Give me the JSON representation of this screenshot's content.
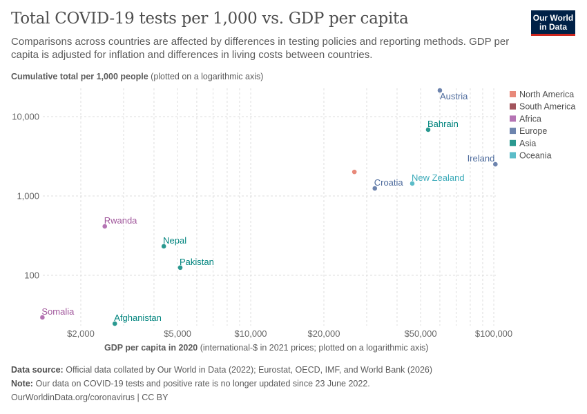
{
  "header": {
    "title": "Total COVID-19 tests per 1,000 vs. GDP per capita",
    "subtitle": "Comparisons across countries are affected by differences in testing policies and reporting methods. GDP per capita is adjusted for inflation and differences in living costs between countries.",
    "logo_text": "Our World in Data"
  },
  "chart_data": {
    "type": "scatter",
    "ylabel_bold": "Cumulative total per 1,000 people",
    "ylabel_note": "(plotted on a logarithmic axis)",
    "xlabel_bold": "GDP per capita in 2020",
    "xlabel_note": "(international-$ in 2021 prices; plotted on a logarithmic axis)",
    "xscale": "log",
    "yscale": "log",
    "xlim": [
      1400,
      102000
    ],
    "ylim": [
      24,
      21500
    ],
    "grid": true,
    "x_ticks": [
      {
        "value": 2000,
        "label": "$2,000"
      },
      {
        "value": 5000,
        "label": "$5,000"
      },
      {
        "value": 10000,
        "label": "$10,000"
      },
      {
        "value": 20000,
        "label": "$20,000"
      },
      {
        "value": 50000,
        "label": "$50,000"
      },
      {
        "value": 100000,
        "label": "$100,000"
      }
    ],
    "x_minor": [
      3000,
      4000,
      6000,
      7000,
      8000,
      9000,
      30000,
      40000,
      60000,
      70000,
      80000,
      90000
    ],
    "y_ticks": [
      {
        "value": 100,
        "label": "100"
      },
      {
        "value": 1000,
        "label": "1,000"
      },
      {
        "value": 10000,
        "label": "10,000"
      }
    ],
    "legend_position": "right",
    "legend": [
      {
        "name": "North America",
        "color": "#e8897a"
      },
      {
        "name": "South America",
        "color": "#a2545c"
      },
      {
        "name": "Africa",
        "color": "#b574b4"
      },
      {
        "name": "Europe",
        "color": "#6d84ae"
      },
      {
        "name": "Asia",
        "color": "#2a9990"
      },
      {
        "name": "Oceania",
        "color": "#5bbcc8"
      }
    ],
    "label_colors": {
      "North America": "#d9604b",
      "South America": "#8c2a35",
      "Africa": "#a0569b",
      "Europe": "#4c6a9c",
      "Asia": "#00847e",
      "Oceania": "#3aaab9"
    },
    "points": [
      {
        "label": "Somalia",
        "region": "Africa",
        "x": 1390,
        "y": 29.5,
        "label_pos": "top-right"
      },
      {
        "label": "Rwanda",
        "region": "Africa",
        "x": 2510,
        "y": 414,
        "label_pos": "top-right"
      },
      {
        "label": "Afghanistan",
        "region": "Asia",
        "x": 2760,
        "y": 24.6,
        "label_pos": "top-right"
      },
      {
        "label": "Nepal",
        "region": "Asia",
        "x": 4390,
        "y": 232,
        "label_pos": "top-right"
      },
      {
        "label": "Pakistan",
        "region": "Asia",
        "x": 5130,
        "y": 125,
        "label_pos": "top-right"
      },
      {
        "label": "",
        "region": "North America",
        "x": 26700,
        "y": 2010,
        "label_pos": "none"
      },
      {
        "label": "Croatia",
        "region": "Europe",
        "x": 32400,
        "y": 1246,
        "label_pos": "top-right"
      },
      {
        "label": "New Zealand",
        "region": "Oceania",
        "x": 46200,
        "y": 1435,
        "label_pos": "top-right"
      },
      {
        "label": "Bahrain",
        "region": "Asia",
        "x": 53700,
        "y": 6840,
        "label_pos": "top-right"
      },
      {
        "label": "Austria",
        "region": "Europe",
        "x": 60000,
        "y": 21400,
        "label_pos": "bottom-right"
      },
      {
        "label": "Ireland",
        "region": "Europe",
        "x": 101500,
        "y": 2510,
        "label_pos": "top-left"
      }
    ]
  },
  "footer": {
    "source_label": "Data source:",
    "source_text": "Official data collated by Our World in Data (2022); Eurostat, OECD, IMF, and World Bank (2026)",
    "note_label": "Note:",
    "note_text": "Our data on COVID-19 tests and positive rate is no longer updated since 23 June 2022.",
    "url": "OurWorldinData.org/coronavirus | CC BY"
  }
}
